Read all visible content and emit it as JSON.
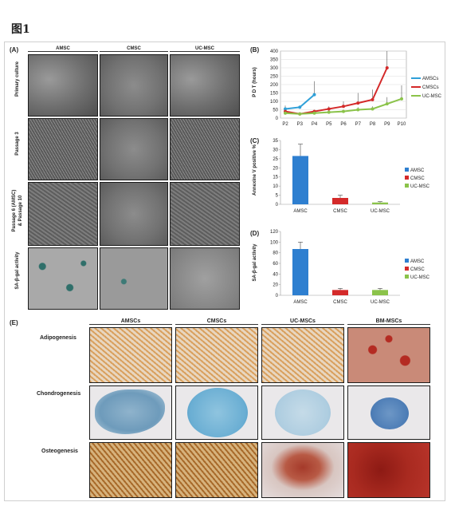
{
  "figure": {
    "title": "图1",
    "panel_labels": {
      "a": "(A)",
      "b": "(B)",
      "c": "(C)",
      "d": "(D)",
      "e": "(E)"
    }
  },
  "panel_a": {
    "columns": [
      "AMSC",
      "CMSC",
      "UC-MSC"
    ],
    "rows": [
      "Primary culture",
      "Passage 3",
      "Passage 6 (AMSC)\n& Passage 10",
      "SA-β-gal activity"
    ]
  },
  "panel_e": {
    "columns": [
      "AMSCs",
      "CMSCs",
      "UC-MSCs",
      "BM-MSCs"
    ],
    "rows": [
      "Adipogenesis",
      "Chondrogenesis",
      "Osteogenesis"
    ]
  },
  "chart_data": [
    {
      "type": "line",
      "panel": "B",
      "ylabel": "P D T (hours)",
      "categories": [
        "P2",
        "P3",
        "P4",
        "P5",
        "P6",
        "P7",
        "P8",
        "P9",
        "P10"
      ],
      "yticks": [
        0,
        50,
        100,
        150,
        200,
        250,
        300,
        350,
        400
      ],
      "ylim": [
        0,
        400
      ],
      "legend_position": "right",
      "series": [
        {
          "name": "AMSCs",
          "color": "#2fa0d8",
          "values": [
            55,
            65,
            140,
            null,
            null,
            null,
            null,
            null,
            null
          ],
          "errors": [
            20,
            10,
            80,
            null,
            null,
            null,
            null,
            null,
            null
          ]
        },
        {
          "name": "CMSCs",
          "color": "#d42a2a",
          "values": [
            40,
            25,
            40,
            55,
            70,
            90,
            110,
            300,
            null
          ],
          "errors": [
            10,
            5,
            10,
            15,
            30,
            60,
            60,
            100,
            null
          ]
        },
        {
          "name": "UC-MSCs",
          "color": "#8bc34a",
          "values": [
            30,
            25,
            30,
            35,
            40,
            50,
            55,
            85,
            115
          ],
          "errors": [
            10,
            5,
            5,
            10,
            10,
            15,
            15,
            40,
            80
          ]
        }
      ]
    },
    {
      "type": "bar",
      "panel": "C",
      "ylabel": "Annexine V positive %",
      "categories": [
        "AMSC",
        "CMSC",
        "UC-MSC"
      ],
      "yticks": [
        0,
        5,
        10,
        15,
        20,
        25,
        30,
        35
      ],
      "ylim": [
        0,
        35
      ],
      "legend_position": "right",
      "legend": [
        "AMSC",
        "CMSC",
        "UC-MSC"
      ],
      "colors": [
        "#2e7fd0",
        "#d42a2a",
        "#8bc34a"
      ],
      "values": [
        26.5,
        3.5,
        1.0
      ],
      "errors": [
        6.5,
        1.5,
        0.5
      ]
    },
    {
      "type": "bar",
      "panel": "D",
      "ylabel": "SA-β-gal activity",
      "categories": [
        "AMSC",
        "CMSC",
        "UC-MSC"
      ],
      "yticks": [
        0,
        20,
        40,
        60,
        80,
        100,
        120
      ],
      "ylim": [
        0,
        120
      ],
      "legend_position": "right",
      "legend": [
        "AMSC",
        "CMSC",
        "UC-MSC"
      ],
      "colors": [
        "#2e7fd0",
        "#d42a2a",
        "#8bc34a"
      ],
      "values": [
        87,
        10,
        10
      ],
      "errors": [
        13,
        3,
        3
      ]
    }
  ]
}
